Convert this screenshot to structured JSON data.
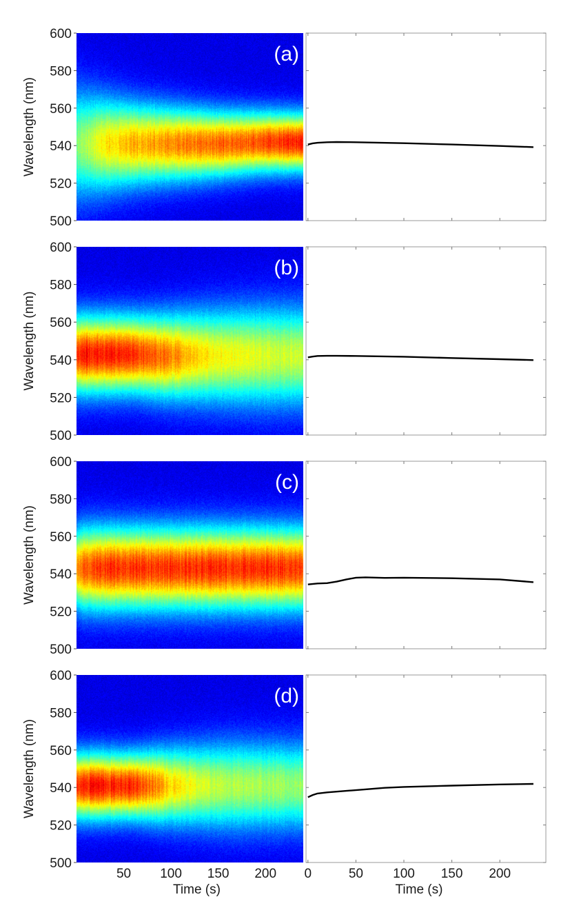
{
  "chart_data": [
    {
      "type": "heatmap",
      "panel_label": "(a)",
      "ylabel": "Wavelength (nm)",
      "xlabel": "",
      "ylim": [
        500,
        600
      ],
      "yticks": [
        500,
        520,
        540,
        560,
        580,
        600
      ],
      "xlim": [
        0,
        240
      ],
      "xticks": [],
      "colormap": "jet",
      "intensity_profile": {
        "time": [
          0,
          10,
          30,
          60,
          100,
          150,
          200,
          240
        ],
        "peak_wavelength": [
          541,
          541,
          541,
          541,
          541,
          541,
          542,
          542
        ],
        "band_width": [
          20,
          19,
          17,
          15,
          13.5,
          12,
          11,
          10.5
        ],
        "peak_intensity": [
          0.55,
          0.6,
          0.72,
          0.8,
          0.85,
          0.9,
          0.95,
          1.0
        ]
      }
    },
    {
      "type": "line",
      "xlabel": "",
      "ylabel": "",
      "ylim": [
        500,
        600
      ],
      "xlim": [
        -2,
        248
      ],
      "xticks": [
        0,
        50,
        100,
        150,
        200
      ],
      "series": [
        {
          "x": [
            0,
            5,
            10,
            20,
            30,
            50,
            100,
            150,
            200,
            235
          ],
          "y": [
            540.6,
            541.2,
            541.5,
            541.8,
            541.9,
            541.8,
            541.3,
            540.6,
            539.8,
            539.2
          ]
        }
      ]
    },
    {
      "type": "heatmap",
      "panel_label": "(b)",
      "ylabel": "Wavelength (nm)",
      "xlabel": "",
      "ylim": [
        500,
        600
      ],
      "yticks": [
        500,
        520,
        540,
        560,
        580,
        600
      ],
      "xlim": [
        0,
        240
      ],
      "xticks": [],
      "colormap": "jet",
      "intensity_profile": {
        "time": [
          0,
          30,
          60,
          90,
          120,
          150,
          200,
          240
        ],
        "peak_wavelength": [
          543,
          543,
          543,
          542,
          542,
          542,
          542,
          542
        ],
        "band_width": [
          14,
          14,
          14,
          15,
          16,
          17,
          18,
          18
        ],
        "peak_intensity": [
          1.0,
          1.0,
          0.98,
          0.9,
          0.78,
          0.7,
          0.65,
          0.62
        ]
      }
    },
    {
      "type": "line",
      "xlabel": "",
      "ylabel": "",
      "ylim": [
        500,
        600
      ],
      "xlim": [
        -2,
        248
      ],
      "xticks": [
        0,
        50,
        100,
        150,
        200
      ],
      "series": [
        {
          "x": [
            0,
            5,
            10,
            20,
            30,
            50,
            100,
            150,
            200,
            235
          ],
          "y": [
            541.3,
            541.7,
            542.0,
            542.1,
            542.1,
            542.0,
            541.6,
            540.9,
            540.3,
            539.8
          ]
        }
      ]
    },
    {
      "type": "heatmap",
      "panel_label": "(c)",
      "ylabel": "Wavelength (nm)",
      "xlabel": "",
      "ylim": [
        500,
        600
      ],
      "yticks": [
        500,
        520,
        540,
        560,
        580,
        600
      ],
      "xlim": [
        0,
        240
      ],
      "xticks": [],
      "colormap": "jet",
      "intensity_profile": {
        "time": [
          0,
          5,
          20,
          60,
          100,
          150,
          200,
          240
        ],
        "peak_wavelength": [
          543,
          543,
          543,
          543,
          543,
          543,
          543,
          543
        ],
        "band_width": [
          14,
          15,
          15,
          15,
          15,
          15,
          15,
          15
        ],
        "peak_intensity": [
          0.85,
          0.9,
          0.95,
          0.97,
          0.98,
          0.98,
          0.97,
          0.96
        ]
      }
    },
    {
      "type": "line",
      "xlabel": "",
      "ylabel": "",
      "ylim": [
        500,
        600
      ],
      "xlim": [
        -2,
        248
      ],
      "xticks": [
        0,
        50,
        100,
        150,
        200
      ],
      "series": [
        {
          "x": [
            0,
            10,
            20,
            30,
            40,
            50,
            60,
            80,
            100,
            150,
            200,
            235
          ],
          "y": [
            534.3,
            534.8,
            535.0,
            535.8,
            537.0,
            537.9,
            538.1,
            537.8,
            537.9,
            537.6,
            537.0,
            535.5
          ]
        }
      ]
    },
    {
      "type": "heatmap",
      "panel_label": "(d)",
      "ylabel": "Wavelength (nm)",
      "xlabel": "Time (s)",
      "ylim": [
        500,
        600
      ],
      "yticks": [
        500,
        520,
        540,
        560,
        580,
        600
      ],
      "xlim": [
        0,
        240
      ],
      "xticks": [
        50,
        100,
        150,
        200
      ],
      "colormap": "jet",
      "intensity_profile": {
        "time": [
          0,
          30,
          60,
          80,
          100,
          130,
          160,
          200,
          240
        ],
        "peak_wavelength": [
          541,
          541,
          541,
          541,
          541,
          541,
          541,
          541,
          541
        ],
        "band_width": [
          12,
          12,
          12,
          13,
          14,
          15,
          16,
          16,
          16
        ],
        "peak_intensity": [
          1.0,
          1.0,
          0.98,
          0.88,
          0.75,
          0.66,
          0.6,
          0.58,
          0.56
        ]
      }
    },
    {
      "type": "line",
      "xlabel": "Time (s)",
      "ylabel": "",
      "ylim": [
        500,
        600
      ],
      "xlim": [
        -2,
        248
      ],
      "xticks": [
        0,
        50,
        100,
        150,
        200
      ],
      "series": [
        {
          "x": [
            0,
            5,
            10,
            20,
            40,
            60,
            80,
            100,
            150,
            200,
            235
          ],
          "y": [
            534.8,
            536.0,
            536.8,
            537.4,
            538.2,
            539.0,
            539.8,
            540.3,
            541.0,
            541.6,
            541.9
          ]
        }
      ]
    }
  ]
}
